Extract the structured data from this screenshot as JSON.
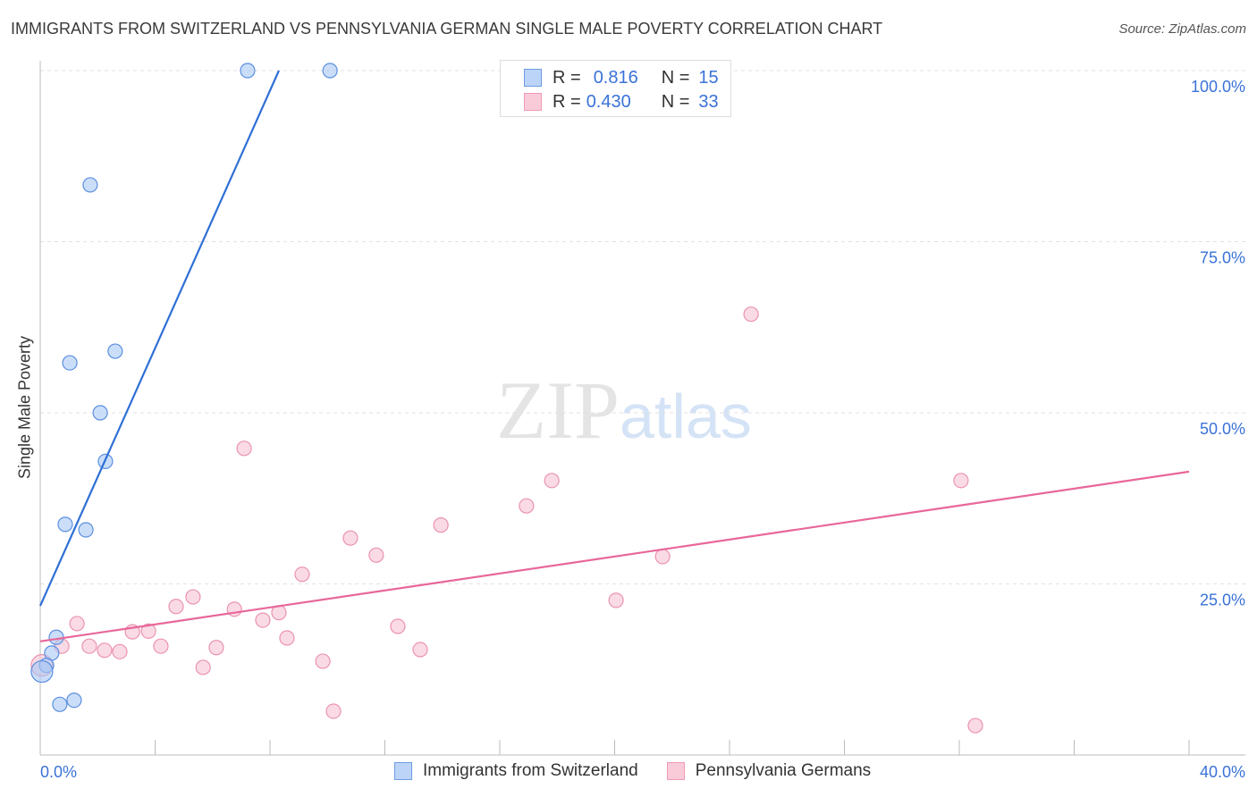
{
  "title": "IMMIGRANTS FROM SWITZERLAND VS PENNSYLVANIA GERMAN SINGLE MALE POVERTY CORRELATION CHART",
  "source": "Source: ZipAtlas.com",
  "watermark": "ZIPatlas",
  "legend": {
    "rows": [
      {
        "r_label": "R =",
        "r_value": "0.816",
        "n_label": "N =",
        "n_value": "15"
      },
      {
        "r_label": "R =",
        "r_value": "0.430",
        "n_label": "N =",
        "n_value": "33"
      }
    ]
  },
  "chart_data": {
    "type": "scatter",
    "title": "IMMIGRANTS FROM SWITZERLAND VS PENNSYLVANIA GERMAN SINGLE MALE POVERTY CORRELATION CHART",
    "xlabel": "",
    "ylabel": "Single Male Poverty",
    "xlim": [
      0,
      40
    ],
    "ylim": [
      0,
      100
    ],
    "x_tick_labels": [
      "0.0%",
      "40.0%"
    ],
    "y_tick_labels": [
      "100.0%",
      "75.0%",
      "50.0%",
      "25.0%"
    ],
    "y_ticks": [
      100,
      75,
      50,
      25
    ],
    "grid": true,
    "series": [
      {
        "name": "Immigrants from Switzerland",
        "color": "#a9c8f5",
        "stroke": "#5b8fe0",
        "line_color": "#2f6fd6",
        "trend": [
          [
            0,
            21.8
          ],
          [
            8.31,
            100
          ]
        ],
        "points": [
          [
            7.22,
            100
          ],
          [
            10.09,
            100
          ],
          [
            1.74,
            83.3
          ],
          [
            1.03,
            57.3
          ],
          [
            2.61,
            59.0
          ],
          [
            2.09,
            50.0
          ],
          [
            2.27,
            42.9
          ],
          [
            0.87,
            33.7
          ],
          [
            1.59,
            32.9
          ],
          [
            0.56,
            17.2
          ],
          [
            0.4,
            14.9
          ],
          [
            0.22,
            13.1
          ],
          [
            0.06,
            12.2
          ],
          [
            0.68,
            7.4
          ],
          [
            1.18,
            8.0
          ]
        ]
      },
      {
        "name": "Pennsylvania Germans",
        "color": "#f7c3d3",
        "stroke": "#eb93ae",
        "line_color": "#e8679a",
        "trend": [
          [
            0,
            16.6
          ],
          [
            40,
            41.4
          ]
        ],
        "points": [
          [
            24.75,
            64.4
          ],
          [
            7.1,
            44.8
          ],
          [
            17.81,
            40.1
          ],
          [
            32.06,
            40.1
          ],
          [
            16.93,
            36.4
          ],
          [
            13.95,
            33.6
          ],
          [
            10.8,
            31.7
          ],
          [
            11.7,
            29.2
          ],
          [
            21.67,
            29.0
          ],
          [
            9.12,
            26.4
          ],
          [
            20.05,
            22.6
          ],
          [
            5.32,
            23.1
          ],
          [
            4.73,
            21.7
          ],
          [
            6.76,
            21.3
          ],
          [
            8.31,
            20.8
          ],
          [
            7.75,
            19.7
          ],
          [
            1.28,
            19.2
          ],
          [
            12.45,
            18.8
          ],
          [
            3.21,
            18.0
          ],
          [
            3.77,
            18.1
          ],
          [
            8.59,
            17.1
          ],
          [
            1.71,
            15.9
          ],
          [
            4.2,
            15.9
          ],
          [
            6.13,
            15.7
          ],
          [
            13.23,
            15.4
          ],
          [
            2.24,
            15.3
          ],
          [
            2.77,
            15.1
          ],
          [
            0.75,
            15.9
          ],
          [
            9.84,
            13.7
          ],
          [
            5.67,
            12.8
          ],
          [
            10.21,
            6.4
          ],
          [
            32.56,
            4.3
          ],
          [
            0.06,
            13.1
          ]
        ]
      }
    ]
  }
}
